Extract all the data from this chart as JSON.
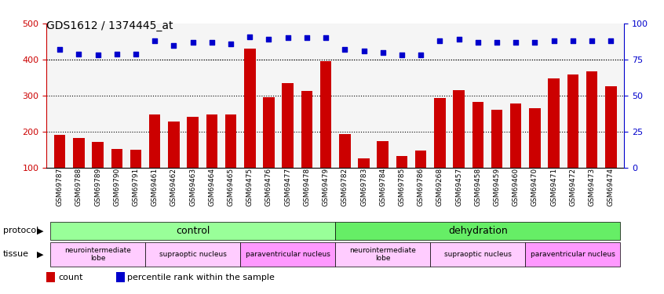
{
  "title": "GDS1612 / 1374445_at",
  "samples": [
    "GSM69787",
    "GSM69788",
    "GSM69789",
    "GSM69790",
    "GSM69791",
    "GSM69461",
    "GSM69462",
    "GSM69463",
    "GSM69464",
    "GSM69465",
    "GSM69475",
    "GSM69476",
    "GSM69477",
    "GSM69478",
    "GSM69479",
    "GSM69782",
    "GSM69783",
    "GSM69784",
    "GSM69785",
    "GSM69786",
    "GSM69268",
    "GSM69457",
    "GSM69458",
    "GSM69459",
    "GSM69460",
    "GSM69470",
    "GSM69471",
    "GSM69472",
    "GSM69473",
    "GSM69474"
  ],
  "counts": [
    190,
    182,
    172,
    152,
    150,
    248,
    228,
    242,
    248,
    247,
    430,
    296,
    335,
    313,
    395,
    193,
    126,
    173,
    133,
    147,
    293,
    315,
    283,
    261,
    277,
    265,
    348,
    358,
    368,
    325
  ],
  "percentiles": [
    82,
    79,
    78,
    79,
    79,
    88,
    85,
    87,
    87,
    86,
    91,
    89,
    90,
    90,
    90,
    82,
    81,
    80,
    78,
    78,
    88,
    89,
    87,
    87,
    87,
    87,
    88,
    88,
    88,
    88
  ],
  "bar_color": "#cc0000",
  "dot_color": "#0000cc",
  "ylim_left": [
    100,
    500
  ],
  "ylim_right": [
    0,
    100
  ],
  "yticks_left": [
    100,
    200,
    300,
    400,
    500
  ],
  "yticks_right": [
    0,
    25,
    50,
    75,
    100
  ],
  "grid_values": [
    200,
    300,
    400
  ],
  "protocol_groups": [
    {
      "label": "control",
      "start": 0,
      "end": 14,
      "color": "#99ff99"
    },
    {
      "label": "dehydration",
      "start": 15,
      "end": 29,
      "color": "#66ee66"
    }
  ],
  "tissue_groups": [
    {
      "label": "neurointermediate\nlobe",
      "start": 0,
      "end": 4,
      "color": "#ffccff"
    },
    {
      "label": "supraoptic nucleus",
      "start": 5,
      "end": 9,
      "color": "#ffccff"
    },
    {
      "label": "paraventricular nucleus",
      "start": 10,
      "end": 14,
      "color": "#ff99ff"
    },
    {
      "label": "neurointermediate\nlobe",
      "start": 15,
      "end": 19,
      "color": "#ffccff"
    },
    {
      "label": "supraoptic nucleus",
      "start": 20,
      "end": 24,
      "color": "#ffccff"
    },
    {
      "label": "paraventricular nucleus",
      "start": 25,
      "end": 29,
      "color": "#ff99ff"
    }
  ],
  "legend_items": [
    {
      "label": "count",
      "color": "#cc0000",
      "marker": "s"
    },
    {
      "label": "percentile rank within the sample",
      "color": "#0000cc",
      "marker": "s"
    }
  ]
}
